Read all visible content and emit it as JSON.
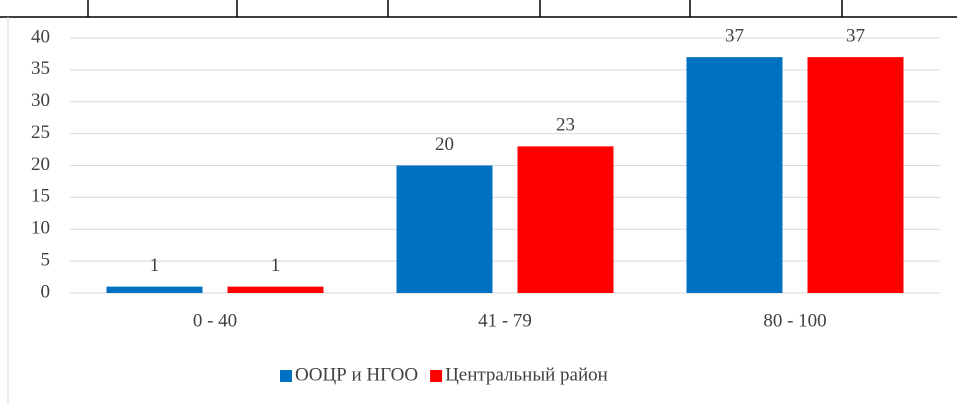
{
  "chart_data": {
    "type": "bar",
    "categories": [
      "0 - 40",
      "41 - 79",
      "80 - 100"
    ],
    "series": [
      {
        "name": "ООЦР и НГОО",
        "color": "#0070c0",
        "values": [
          1,
          20,
          37
        ]
      },
      {
        "name": "Центральный район",
        "color": "#ff0000",
        "values": [
          1,
          23,
          37
        ]
      }
    ],
    "ylim": [
      0,
      40
    ],
    "yticks": [
      0,
      5,
      10,
      15,
      20,
      25,
      30,
      35,
      40
    ],
    "grid": true,
    "legend": "bottom",
    "data_labels": true
  }
}
